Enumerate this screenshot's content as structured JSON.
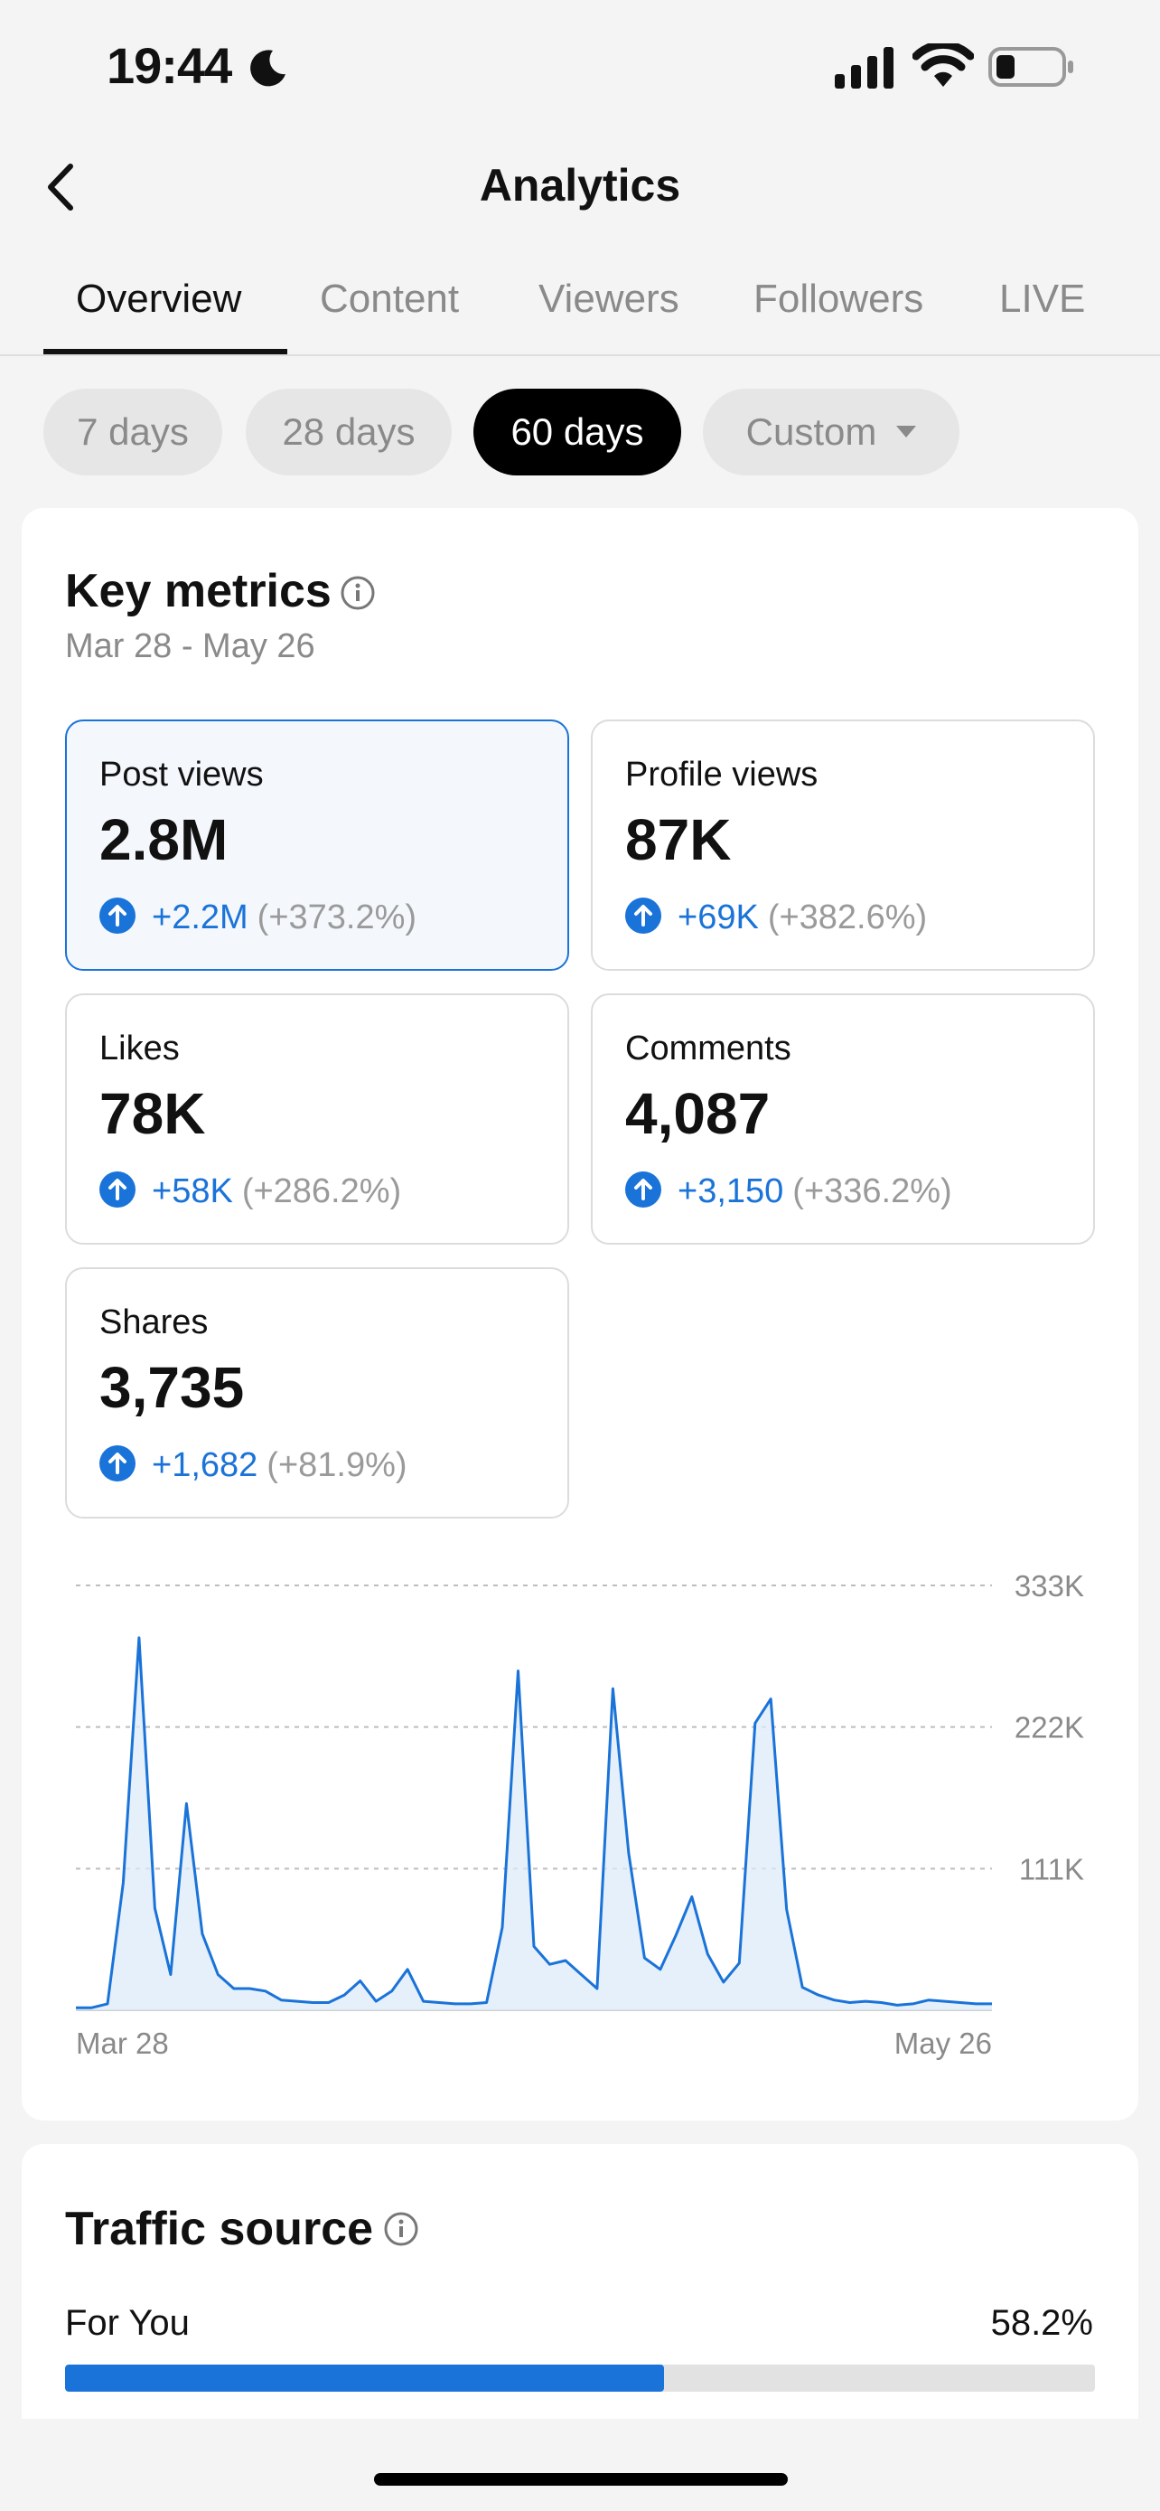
{
  "status_bar": {
    "time": "19:44"
  },
  "header": {
    "title": "Analytics"
  },
  "tabs": [
    {
      "label": "Overview",
      "active": true
    },
    {
      "label": "Content",
      "active": false
    },
    {
      "label": "Viewers",
      "active": false
    },
    {
      "label": "Followers",
      "active": false
    },
    {
      "label": "LIVE",
      "active": false
    }
  ],
  "ranges": [
    {
      "label": "7 days",
      "active": false
    },
    {
      "label": "28 days",
      "active": false
    },
    {
      "label": "60 days",
      "active": true
    },
    {
      "label": "Custom",
      "active": false
    }
  ],
  "key_metrics": {
    "title": "Key metrics",
    "date_range": "Mar 28 - May 26",
    "metrics": [
      {
        "label": "Post views",
        "value": "2.8M",
        "delta": "+2.2M",
        "pct": "(+373.2%)",
        "selected": true
      },
      {
        "label": "Profile views",
        "value": "87K",
        "delta": "+69K",
        "pct": "(+382.6%)",
        "selected": false
      },
      {
        "label": "Likes",
        "value": "78K",
        "delta": "+58K",
        "pct": "(+286.2%)",
        "selected": false
      },
      {
        "label": "Comments",
        "value": "4,087",
        "delta": "+3,150",
        "pct": "(+336.2%)",
        "selected": false
      },
      {
        "label": "Shares",
        "value": "3,735",
        "delta": "+1,682",
        "pct": "(+81.9%)",
        "selected": false
      }
    ]
  },
  "chart_data": {
    "type": "area",
    "x_start_label": "Mar 28",
    "x_end_label": "May 26",
    "y_tick_labels": [
      "333K",
      "222K",
      "111K"
    ],
    "y_ticks": [
      333000,
      222000,
      111000
    ],
    "ylim": [
      0,
      333000
    ],
    "grid": true,
    "series": [
      {
        "values": [
          2000,
          2000,
          5000,
          100000,
          292000,
          80000,
          28000,
          162000,
          60000,
          28000,
          17000,
          17000,
          15000,
          8000,
          7000,
          6000,
          6000,
          12000,
          23000,
          7000,
          15000,
          32000,
          7000,
          6000,
          5000,
          5000,
          6000,
          65000,
          266000,
          50000,
          36000,
          39000,
          28000,
          17000,
          252000,
          123000,
          41000,
          32000,
          59000,
          89000,
          44000,
          22000,
          37000,
          225000,
          244000,
          79000,
          18000,
          12000,
          8000,
          6000,
          7000,
          6000,
          4000,
          5000,
          8000,
          7000,
          6000,
          5000,
          5000
        ]
      }
    ],
    "colors": {
      "line": "#1a73d8",
      "fill": "#dcebfa"
    }
  },
  "traffic_source": {
    "title": "Traffic source",
    "items": [
      {
        "label": "For You",
        "value": "58.2%",
        "fraction": 0.582
      }
    ]
  }
}
